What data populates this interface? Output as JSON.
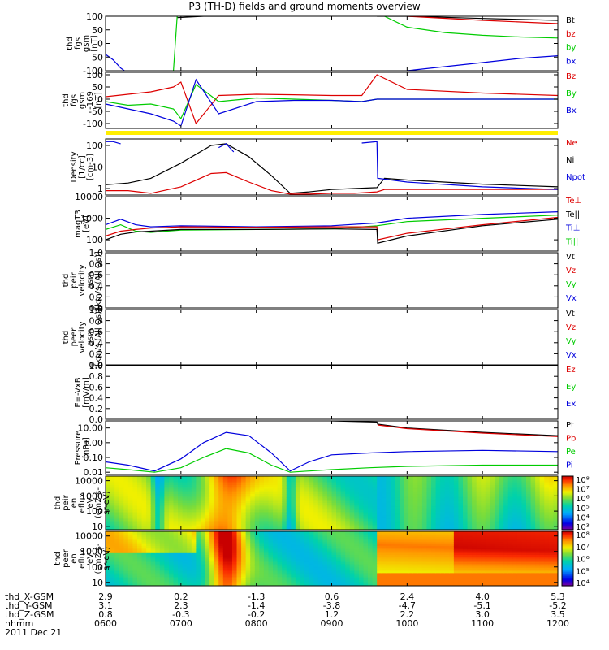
{
  "title": "P3 (TH-D) fields and ground moments overview",
  "colors": {
    "black": "#000000",
    "red": "#dd0000",
    "green": "#00cc00",
    "blue": "#0000dd",
    "yellow": "#ffee00",
    "axis": "#000000"
  },
  "chart_data": [
    {
      "id": "fgs",
      "type": "line",
      "ylabel": [
        "thd",
        "fgs",
        "gsm",
        "[nT]"
      ],
      "yticks": [
        "100",
        "50",
        "0",
        "-50",
        "-100"
      ],
      "tick_values": [
        100,
        50,
        0,
        -50,
        -100
      ],
      "ylim": [
        -100,
        100
      ],
      "scale": "linear",
      "legend": [
        {
          "label": "Bt",
          "color": "#000000"
        },
        {
          "label": "bz",
          "color": "#dd0000"
        },
        {
          "label": "by",
          "color": "#00cc00"
        },
        {
          "label": "bx",
          "color": "#0000dd"
        }
      ],
      "series": [
        {
          "name": "Bt",
          "color": "#000000",
          "x": [
            6.0,
            6.9,
            6.95,
            7.3,
            7.45,
            8.0,
            9.5,
            9.6,
            10.0,
            11.0,
            12.0
          ],
          "y": [
            null,
            null,
            95,
            100,
            100,
            100,
            null,
            100,
            100,
            92,
            85
          ]
        },
        {
          "name": "bz",
          "color": "#dd0000",
          "x": [
            6.0,
            9.6,
            10.0,
            11.0,
            12.0
          ],
          "y": [
            null,
            null,
            100,
            85,
            73
          ]
        },
        {
          "name": "by",
          "color": "#00cc00",
          "x": [
            6.0,
            6.85,
            6.9,
            6.95,
            9.6,
            9.7,
            10.0,
            10.5,
            11.0,
            11.5,
            12.0
          ],
          "y": [
            null,
            null,
            -100,
            100,
            null,
            100,
            60,
            40,
            30,
            24,
            20
          ]
        },
        {
          "name": "bx",
          "color": "#0000dd",
          "x": [
            6.0,
            6.1,
            6.2,
            6.25,
            9.6,
            10.0,
            10.5,
            11.0,
            11.5,
            12.0
          ],
          "y": [
            -40,
            -60,
            -90,
            -100,
            null,
            -100,
            -85,
            -70,
            -55,
            -45
          ]
        }
      ]
    },
    {
      "id": "fgs_lowres",
      "type": "line",
      "ylabel": [
        "thd",
        "fgs",
        "gsm",
        "-169",
        "[nT]"
      ],
      "yticks": [
        "100",
        "50",
        "0",
        "-50",
        "-100"
      ],
      "tick_values": [
        100,
        50,
        0,
        -50,
        -100
      ],
      "ylim": [
        -120,
        110
      ],
      "scale": "linear",
      "legend": [
        {
          "label": "Bz",
          "color": "#dd0000"
        },
        {
          "label": "By",
          "color": "#00cc00"
        },
        {
          "label": "Bx",
          "color": "#0000dd"
        }
      ],
      "series": [
        {
          "name": "Bz",
          "color": "#dd0000",
          "x": [
            6.0,
            6.3,
            6.6,
            6.9,
            7.0,
            7.2,
            7.5,
            8.0,
            8.5,
            9.0,
            9.4,
            9.6,
            10.0,
            11.0,
            12.0
          ],
          "y": [
            10,
            20,
            30,
            50,
            70,
            -100,
            15,
            20,
            18,
            15,
            15,
            100,
            40,
            25,
            15
          ]
        },
        {
          "name": "By",
          "color": "#00cc00",
          "x": [
            6.0,
            6.3,
            6.6,
            6.9,
            7.0,
            7.2,
            7.5,
            8.0,
            8.5,
            9.0,
            9.4,
            9.6,
            10.0,
            11.0,
            12.0
          ],
          "y": [
            -10,
            -25,
            -20,
            -40,
            -80,
            60,
            -10,
            5,
            0,
            -5,
            -10,
            0,
            0,
            0,
            0
          ]
        },
        {
          "name": "Bx",
          "color": "#0000dd",
          "x": [
            6.0,
            6.3,
            6.6,
            6.9,
            7.0,
            7.2,
            7.5,
            8.0,
            8.5,
            9.0,
            9.4,
            9.6,
            10.0,
            11.0,
            12.0
          ],
          "y": [
            -20,
            -40,
            -60,
            -90,
            -110,
            80,
            -60,
            -10,
            -5,
            -5,
            -10,
            0,
            0,
            0,
            0
          ]
        }
      ]
    },
    {
      "id": "flag_bar",
      "type": "bar",
      "color": "#ffee00"
    },
    {
      "id": "density",
      "type": "line",
      "ylabel": [
        "Density",
        "[1/cc]",
        "[cm-3]"
      ],
      "yticks": [
        "100",
        "10",
        "1"
      ],
      "tick_values": [
        100,
        10,
        1
      ],
      "ylim": [
        0.5,
        200
      ],
      "scale": "log",
      "legend": [
        {
          "label": "Ne",
          "color": "#dd0000"
        },
        {
          "label": "Ni",
          "color": "#000000"
        },
        {
          "label": "Npot",
          "color": "#0000dd"
        }
      ],
      "series": [
        {
          "name": "Ni",
          "color": "#000000",
          "x": [
            6.0,
            6.3,
            6.6,
            7.0,
            7.4,
            7.6,
            7.9,
            8.2,
            8.45,
            8.7,
            9.0,
            9.3,
            9.6,
            9.7,
            10.0,
            11.0,
            12.0
          ],
          "y": [
            1.5,
            1.8,
            3,
            15,
            100,
            120,
            30,
            4,
            0.6,
            0.7,
            0.9,
            1.0,
            1.1,
            3,
            2.5,
            1.6,
            1.2
          ]
        },
        {
          "name": "Ne",
          "color": "#dd0000",
          "x": [
            6.0,
            6.3,
            6.6,
            7.0,
            7.4,
            7.6,
            7.9,
            8.2,
            8.45,
            8.7,
            9.0,
            9.3,
            9.6,
            9.7,
            10.0,
            11.0,
            12.0
          ],
          "y": [
            0.8,
            0.8,
            0.6,
            1.2,
            5,
            5.5,
            2,
            0.8,
            0.55,
            0.55,
            0.6,
            0.6,
            0.7,
            0.9,
            0.9,
            0.9,
            0.9
          ]
        },
        {
          "name": "Npot",
          "color": "#0000dd",
          "x": [
            6.0,
            6.1,
            6.2,
            6.4,
            7.5,
            7.6,
            7.7,
            9.35,
            9.4,
            9.6,
            9.61,
            10.0,
            11.0,
            12.0
          ],
          "y": [
            150,
            150,
            120,
            null,
            80,
            120,
            50,
            null,
            130,
            150,
            3,
            2,
            1.2,
            0.9
          ]
        }
      ]
    },
    {
      "id": "temperature",
      "type": "line",
      "ylabel": [
        "magT3",
        "[eV]"
      ],
      "yticks": [
        "10000",
        "1000",
        "100"
      ],
      "tick_values": [
        10000,
        1000,
        100
      ],
      "ylim": [
        30,
        10000
      ],
      "scale": "log",
      "legend": [
        {
          "label": "Te⊥",
          "color": "#dd0000"
        },
        {
          "label": "Te||",
          "color": "#000000"
        },
        {
          "label": "Ti⊥",
          "color": "#0000dd"
        },
        {
          "label": "Ti||",
          "color": "#00cc00"
        }
      ],
      "series": [
        {
          "name": "Ti⊥",
          "color": "#0000dd",
          "x": [
            6.0,
            6.2,
            6.4,
            6.6,
            7.0,
            8.0,
            9.0,
            9.6,
            10.0,
            11.0,
            12.0
          ],
          "y": [
            500,
            900,
            500,
            400,
            450,
            400,
            450,
            600,
            1000,
            1500,
            2000
          ]
        },
        {
          "name": "Ti||",
          "color": "#00cc00",
          "x": [
            6.0,
            6.2,
            6.4,
            6.6,
            7.0,
            8.0,
            9.0,
            9.6,
            10.0,
            11.0,
            12.0
          ],
          "y": [
            300,
            500,
            250,
            220,
            280,
            300,
            320,
            450,
            700,
            1000,
            1400
          ]
        },
        {
          "name": "Te⊥",
          "color": "#dd0000",
          "x": [
            6.0,
            6.2,
            6.4,
            6.6,
            7.0,
            8.0,
            9.0,
            9.6,
            9.61,
            10.0,
            11.0,
            12.0
          ],
          "y": [
            150,
            250,
            300,
            350,
            400,
            380,
            400,
            400,
            100,
            200,
            500,
            1100
          ]
        },
        {
          "name": "Te||",
          "color": "#000000",
          "x": [
            6.0,
            6.2,
            6.4,
            6.6,
            7.0,
            8.0,
            9.0,
            9.6,
            9.61,
            10.0,
            11.0,
            12.0
          ],
          "y": [
            100,
            180,
            230,
            250,
            300,
            300,
            320,
            300,
            70,
            150,
            450,
            900
          ]
        }
      ]
    },
    {
      "id": "vel_peir",
      "type": "line",
      "ylabel": [
        "thd",
        "peir",
        "velocity",
        "gsm",
        "[km/s (All Qs)]"
      ],
      "yticks": [
        "1.0",
        "0.8",
        "0.6",
        "0.4",
        "0.2",
        "0.0"
      ],
      "tick_values": [
        1.0,
        0.8,
        0.6,
        0.4,
        0.2,
        0.0
      ],
      "ylim": [
        0,
        1
      ],
      "scale": "linear",
      "legend": [
        {
          "label": "Vt",
          "color": "#000000"
        },
        {
          "label": "Vz",
          "color": "#dd0000"
        },
        {
          "label": "Vy",
          "color": "#00cc00"
        },
        {
          "label": "Vx",
          "color": "#0000dd"
        }
      ],
      "series": []
    },
    {
      "id": "vel_peer",
      "type": "line",
      "ylabel": [
        "thd",
        "peer",
        "velocity",
        "gsm",
        "[km/s (All Qs)]"
      ],
      "yticks": [
        "1.0",
        "0.8",
        "0.6",
        "0.4",
        "0.2",
        "0.0"
      ],
      "tick_values": [
        1.0,
        0.8,
        0.6,
        0.4,
        0.2,
        0.0
      ],
      "ylim": [
        0,
        1
      ],
      "scale": "linear",
      "legend": [
        {
          "label": "Vt",
          "color": "#000000"
        },
        {
          "label": "Vz",
          "color": "#dd0000"
        },
        {
          "label": "Vy",
          "color": "#00cc00"
        },
        {
          "label": "Vx",
          "color": "#0000dd"
        }
      ],
      "series": []
    },
    {
      "id": "efield",
      "type": "line",
      "ylabel": [
        "E=-VxB",
        "[mV/m]"
      ],
      "yticks": [
        "1.0",
        "0.8",
        "0.6",
        "0.4",
        "0.2",
        "0.0"
      ],
      "tick_values": [
        1.0,
        0.8,
        0.6,
        0.4,
        0.2,
        0.0
      ],
      "ylim": [
        0,
        1
      ],
      "scale": "linear",
      "legend": [
        {
          "label": "Ez",
          "color": "#dd0000"
        },
        {
          "label": "Ey",
          "color": "#00cc00"
        },
        {
          "label": "Ex",
          "color": "#0000dd"
        }
      ],
      "series": []
    },
    {
      "id": "pressure",
      "type": "line",
      "ylabel": [
        "Pressure",
        "[nPa]"
      ],
      "yticks": [
        "10.00",
        "1.00",
        "0.10",
        "0.01"
      ],
      "tick_values": [
        10,
        1,
        0.1,
        0.01
      ],
      "ylim": [
        0.007,
        30
      ],
      "scale": "log",
      "legend": [
        {
          "label": "Pt",
          "color": "#000000"
        },
        {
          "label": "Pb",
          "color": "#dd0000"
        },
        {
          "label": "Pe",
          "color": "#00cc00"
        },
        {
          "label": "Pi",
          "color": "#0000dd"
        }
      ],
      "series": [
        {
          "name": "Pt",
          "color": "#000000",
          "x": [
            6.0,
            8.8,
            9.0,
            9.6,
            9.61,
            10.0,
            11.0,
            12.0
          ],
          "y": [
            null,
            null,
            30,
            25,
            18,
            10,
            5,
            3
          ]
        },
        {
          "name": "Pb",
          "color": "#dd0000",
          "x": [
            6.0,
            9.6,
            9.61,
            10.0,
            11.0,
            12.0
          ],
          "y": [
            null,
            null,
            16,
            9,
            4.5,
            2.6
          ]
        },
        {
          "name": "Pi",
          "color": "#0000dd",
          "x": [
            6.0,
            6.3,
            6.65,
            7.0,
            7.3,
            7.6,
            7.9,
            8.2,
            8.45,
            8.7,
            9.0,
            9.5,
            10.0,
            11.0,
            12.0
          ],
          "y": [
            0.05,
            0.03,
            0.012,
            0.08,
            1,
            5,
            3,
            0.2,
            0.012,
            0.05,
            0.15,
            0.2,
            0.25,
            0.3,
            0.25
          ]
        },
        {
          "name": "Pe",
          "color": "#00cc00",
          "x": [
            6.0,
            6.3,
            6.65,
            7.0,
            7.3,
            7.6,
            7.9,
            8.2,
            8.45,
            8.7,
            9.0,
            9.5,
            10.0,
            11.0,
            12.0
          ],
          "y": [
            0.02,
            0.015,
            0.01,
            0.02,
            0.1,
            0.4,
            0.2,
            0.03,
            0.01,
            0.012,
            0.015,
            0.02,
            0.025,
            0.03,
            0.03
          ]
        }
      ]
    },
    {
      "id": "peir_spec",
      "type": "heatmap",
      "ylabel": [
        "thd",
        "peir",
        "en",
        "eflux",
        "eV",
        "(cm2-s-",
        "sr-eV)"
      ],
      "yticks": [
        "10000",
        "1000",
        "100",
        "10"
      ],
      "tick_values": [
        10000,
        1000,
        100,
        10
      ],
      "ylim": [
        6,
        20000
      ],
      "scale": "log",
      "colorbar": {
        "min_exp": 3,
        "max_exp": 8,
        "labels": [
          "10⁸",
          "10⁷",
          "10⁶",
          "10⁵",
          "10⁴",
          "10³"
        ]
      }
    },
    {
      "id": "peer_spec",
      "type": "heatmap",
      "ylabel": [
        "thd",
        "peer",
        "en",
        "eflux",
        "eV",
        "(cm2-s-",
        "sr-eV)"
      ],
      "yticks": [
        "10000",
        "1000",
        "100",
        "10"
      ],
      "tick_values": [
        10000,
        1000,
        100,
        10
      ],
      "ylim": [
        6,
        20000
      ],
      "scale": "log",
      "colorbar": {
        "min_exp": 4,
        "max_exp": 8,
        "labels": [
          "10⁸",
          "10⁷",
          "10⁶",
          "10⁵",
          "10⁴"
        ]
      }
    }
  ],
  "xaxis": {
    "xlim": [
      6.0,
      12.0
    ],
    "ticks": [
      6.0,
      7.0,
      8.0,
      9.0,
      10.0,
      11.0,
      12.0
    ],
    "row_labels": [
      "thd_X-GSM",
      "thd_Y-GSM",
      "thd_Z-GSM",
      "hhmm",
      "2011 Dec 21"
    ],
    "rows": [
      [
        "2.9",
        "0.2",
        "-1.3",
        "0.6",
        "2.4",
        "4.0",
        "5.3"
      ],
      [
        "3.1",
        "2.3",
        "-1.4",
        "-3.8",
        "-4.7",
        "-5.1",
        "-5.2"
      ],
      [
        "0.8",
        "-0.3",
        "-0.2",
        "1.2",
        "2.2",
        "3.0",
        "3.5"
      ],
      [
        "0600",
        "0700",
        "0800",
        "0900",
        "1000",
        "1100",
        "1200"
      ]
    ]
  }
}
